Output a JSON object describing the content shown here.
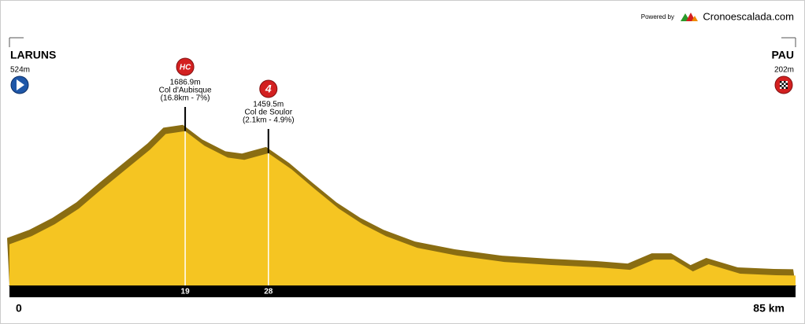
{
  "chart_data": {
    "type": "area",
    "brand": {
      "powered": "Powered by",
      "name": "Cronoescalada.com"
    },
    "start": {
      "name": "LARUNS",
      "elevation": "524m"
    },
    "finish": {
      "name": "PAU",
      "elevation": "202m"
    },
    "climbs": [
      {
        "km": 19,
        "category": "HC",
        "elevation": "1686.9m",
        "name": "Col d'Aubisque",
        "details": "(16.8km - 7%)"
      },
      {
        "km": 28,
        "category": "4",
        "elevation": "1459.5m",
        "name": "Col de Soulor",
        "details": "(2.1km - 4.9%)"
      }
    ],
    "x": [
      0,
      2.4,
      4.9,
      7.5,
      10,
      12.6,
      15.2,
      16.9,
      19,
      21.1,
      23.6,
      25.4,
      28,
      30.5,
      33,
      35.6,
      38.2,
      40.7,
      44.1,
      48.4,
      53.5,
      58.6,
      63.7,
      67.1,
      69.7,
      71.8,
      73.9,
      75.6,
      79,
      82.9,
      85
    ],
    "values": [
      524,
      608,
      730,
      891,
      1093,
      1294,
      1496,
      1657,
      1686.9,
      1536,
      1415,
      1391,
      1459.5,
      1294,
      1093,
      891,
      730,
      608,
      487,
      407,
      342,
      310,
      286,
      261,
      366,
      366,
      245,
      318,
      221,
      205,
      202
    ],
    "color": "#f5c522",
    "shadow_color": "#8a6d12",
    "xlim": [
      0,
      85
    ],
    "ylim": [
      100,
      2000
    ],
    "xticks": [
      0,
      19,
      28,
      {
        "value": 85,
        "label": "85 km"
      }
    ]
  }
}
